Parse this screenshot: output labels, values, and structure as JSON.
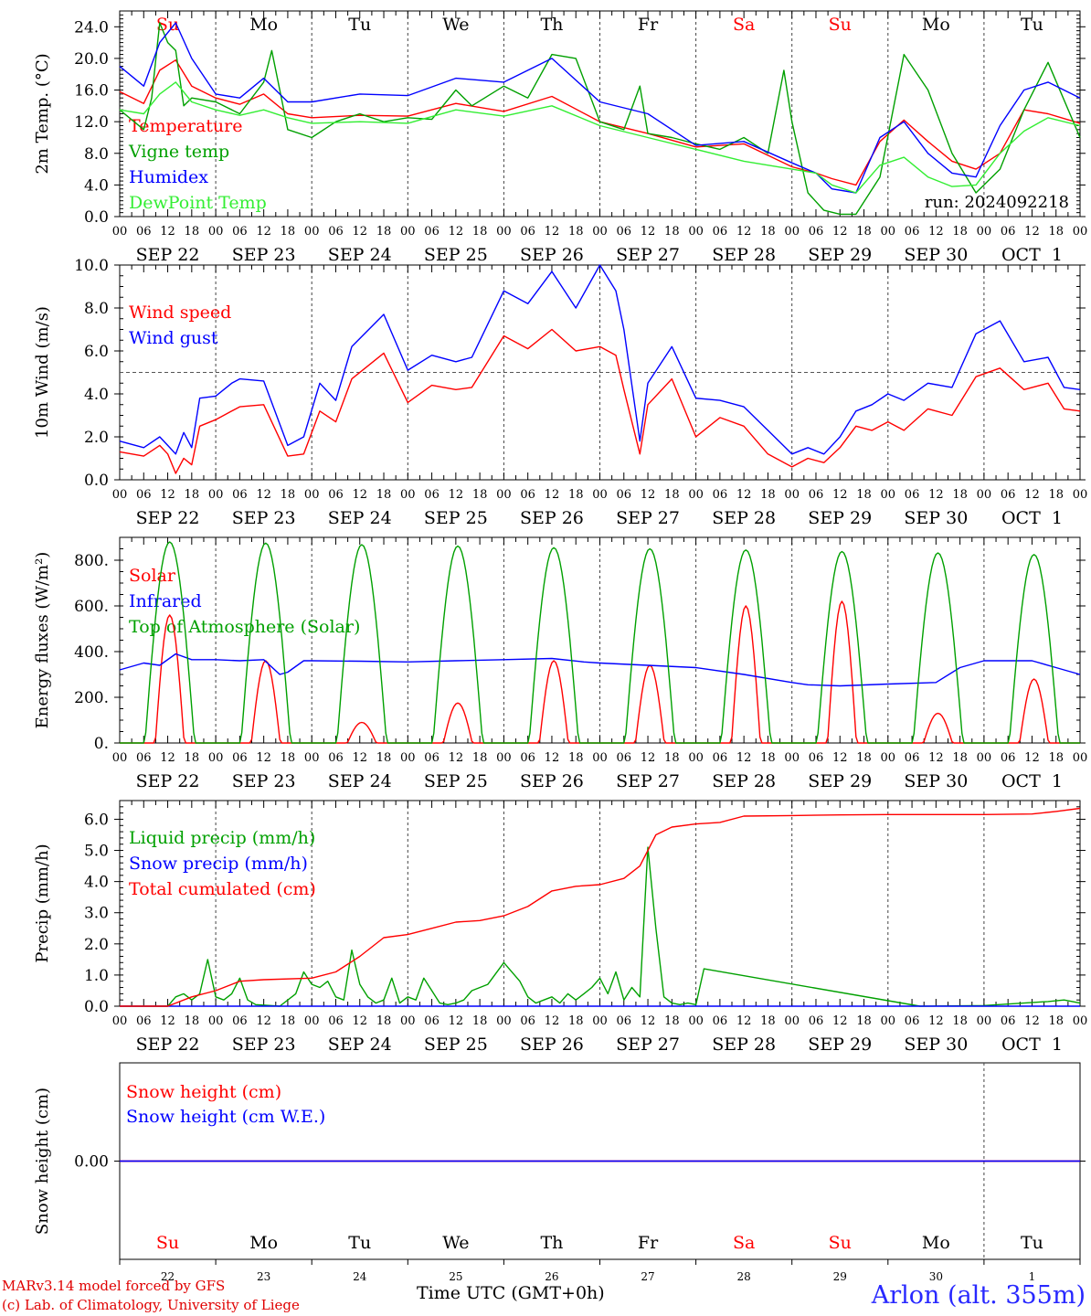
{
  "footer": {
    "credit_line1": "MARv3.14 model forced by GFS",
    "credit_line2": "(c) Lab. of Climatology, University of Liege",
    "x_axis_title": "Time UTC (GMT+0h)",
    "station": "Arlon (alt. 355m)"
  },
  "colors": {
    "red": "#ff0000",
    "green": "#00a000",
    "blue": "#0000ff",
    "lightgreen": "#33ee33",
    "purple": "#8000a0",
    "weekend": "#ff0000",
    "weekday": "#000000"
  },
  "chart_data": [
    {
      "type": "line",
      "ylabel": "2m Temp. (°C)",
      "ylim": [
        0,
        26
      ],
      "yticks": [
        "0.0",
        "4.0",
        "8.0",
        "12.0",
        "16.0",
        "20.0",
        "24.0"
      ],
      "annotation": "run: 2024092218",
      "day_names": [
        "Su",
        "Mo",
        "Tu",
        "We",
        "Th",
        "Fr",
        "Sa",
        "Su",
        "Mo",
        "Tu"
      ],
      "weekend_flags": [
        true,
        false,
        false,
        false,
        false,
        false,
        true,
        true,
        false,
        false
      ],
      "hour_ticks": [
        "00",
        "06",
        "12",
        "18"
      ],
      "date_labels": [
        "SEP 22",
        "SEP 23",
        "SEP 24",
        "SEP 25",
        "SEP 26",
        "SEP 27",
        "SEP 28",
        "SEP 29",
        "SEP 30",
        "OCT  1"
      ],
      "x_hours_range": [
        0,
        240
      ],
      "series": [
        {
          "name": "Temperature",
          "color": "#ff0000",
          "x": [
            0,
            6,
            10,
            14,
            18,
            24,
            30,
            36,
            42,
            48,
            60,
            72,
            84,
            96,
            108,
            120,
            132,
            144,
            156,
            168,
            174,
            178,
            184,
            190,
            196,
            202,
            208,
            214,
            220,
            226,
            232,
            240
          ],
          "values": [
            15.8,
            14.3,
            18.5,
            19.8,
            16.5,
            15,
            14.2,
            15.5,
            13,
            12.5,
            12.8,
            12.7,
            14.3,
            13.3,
            15.2,
            12,
            10.5,
            8.8,
            9.2,
            6.3,
            5.5,
            4.8,
            4,
            9.5,
            12.2,
            9.5,
            7,
            6,
            8,
            13.5,
            13,
            11.8
          ]
        },
        {
          "name": "Vigne temp",
          "color": "#00a000",
          "x": [
            0,
            6,
            8,
            10,
            12,
            14,
            16,
            18,
            24,
            30,
            36,
            38,
            40,
            42,
            48,
            54,
            60,
            66,
            72,
            78,
            84,
            88,
            96,
            102,
            108,
            114,
            120,
            126,
            130,
            132,
            138,
            144,
            150,
            156,
            162,
            166,
            168,
            172,
            176,
            180,
            184,
            190,
            196,
            202,
            208,
            214,
            220,
            226,
            232,
            240
          ],
          "values": [
            13.5,
            11,
            15,
            24.5,
            22,
            21,
            14,
            15,
            14.5,
            13,
            17,
            21,
            16,
            11,
            10,
            12,
            13,
            12,
            12.5,
            12.3,
            16,
            14,
            16.5,
            15,
            20.5,
            20,
            12,
            11,
            16.5,
            10.5,
            10,
            9.2,
            8.5,
            10,
            8,
            18.5,
            12,
            3,
            0.8,
            0.3,
            0.3,
            5,
            20.5,
            16,
            8,
            3,
            6,
            13.5,
            19.5,
            10
          ]
        },
        {
          "name": "Humidex",
          "color": "#0000ff",
          "x": [
            0,
            6,
            10,
            14,
            18,
            24,
            30,
            36,
            42,
            48,
            60,
            72,
            84,
            96,
            108,
            120,
            132,
            144,
            156,
            168,
            174,
            178,
            184,
            190,
            196,
            202,
            208,
            214,
            220,
            226,
            232,
            240
          ],
          "values": [
            19,
            16.5,
            22,
            24.5,
            20,
            15.5,
            15,
            17.5,
            14.5,
            14.5,
            15.5,
            15.3,
            17.5,
            17,
            20,
            14.5,
            13,
            9,
            9.5,
            6.8,
            5.5,
            3.5,
            3,
            10,
            12,
            8,
            5.5,
            5,
            11.5,
            16,
            17,
            15
          ]
        },
        {
          "name": "DewPoint Temp",
          "color": "#33ee33",
          "x": [
            0,
            6,
            10,
            14,
            18,
            24,
            30,
            36,
            42,
            48,
            60,
            72,
            84,
            96,
            108,
            120,
            132,
            144,
            156,
            168,
            174,
            178,
            184,
            190,
            196,
            202,
            208,
            214,
            220,
            226,
            232,
            240
          ],
          "values": [
            13.5,
            13,
            15.5,
            17,
            14.5,
            13.5,
            12.8,
            13.5,
            12.5,
            11.8,
            12,
            11.8,
            13.5,
            12.7,
            14,
            11.5,
            10,
            8.5,
            7,
            6,
            5.5,
            4,
            3,
            6.5,
            7.5,
            5,
            3.8,
            4,
            8,
            10.8,
            12.5,
            11.5
          ]
        }
      ]
    },
    {
      "type": "line",
      "ylabel": "10m Wind (m/s)",
      "ylim": [
        0,
        10
      ],
      "yticks": [
        "0.0",
        "2.0",
        "4.0",
        "6.0",
        "8.0",
        "10.0"
      ],
      "reference_line": 5,
      "hour_ticks": [
        "00",
        "06",
        "12",
        "18"
      ],
      "date_labels": [
        "SEP 22",
        "SEP 23",
        "SEP 24",
        "SEP 25",
        "SEP 26",
        "SEP 27",
        "SEP 28",
        "SEP 29",
        "SEP 30",
        "OCT  1"
      ],
      "x_hours_range": [
        0,
        240
      ],
      "series": [
        {
          "name": "Wind speed",
          "color": "#ff0000",
          "x": [
            0,
            6,
            10,
            12,
            14,
            16,
            18,
            20,
            24,
            28,
            30,
            36,
            42,
            46,
            50,
            54,
            58,
            66,
            72,
            78,
            84,
            88,
            96,
            102,
            108,
            114,
            120,
            124,
            126,
            130,
            132,
            138,
            144,
            150,
            156,
            162,
            168,
            172,
            176,
            180,
            184,
            188,
            192,
            196,
            202,
            208,
            214,
            220,
            226,
            232,
            236,
            240
          ],
          "values": [
            1.3,
            1.1,
            1.6,
            1.2,
            0.3,
            1,
            0.7,
            2.5,
            2.8,
            3.2,
            3.4,
            3.5,
            1.1,
            1.2,
            3.2,
            2.7,
            4.7,
            5.9,
            3.6,
            4.4,
            4.2,
            4.3,
            6.7,
            6.1,
            7,
            6,
            6.2,
            5.8,
            4.2,
            1.2,
            3.5,
            4.7,
            2,
            2.9,
            2.5,
            1.2,
            0.6,
            1,
            0.8,
            1.5,
            2.5,
            2.3,
            2.7,
            2.3,
            3.3,
            3,
            4.8,
            5.2,
            4.2,
            4.5,
            3.3,
            3.2
          ]
        },
        {
          "name": "Wind gust",
          "color": "#0000ff",
          "x": [
            0,
            6,
            10,
            12,
            14,
            16,
            18,
            20,
            24,
            28,
            30,
            36,
            42,
            46,
            50,
            54,
            58,
            66,
            72,
            78,
            84,
            88,
            96,
            102,
            108,
            114,
            120,
            124,
            126,
            130,
            132,
            138,
            144,
            150,
            156,
            162,
            168,
            172,
            176,
            180,
            184,
            188,
            192,
            196,
            202,
            208,
            214,
            220,
            226,
            232,
            236,
            240
          ],
          "values": [
            1.8,
            1.5,
            2,
            1.6,
            1.2,
            2.2,
            1.5,
            3.8,
            3.9,
            4.5,
            4.7,
            4.6,
            1.6,
            2,
            4.5,
            3.7,
            6.2,
            7.7,
            5.1,
            5.8,
            5.5,
            5.7,
            8.8,
            8.2,
            9.7,
            8,
            10,
            8.8,
            7,
            1.8,
            4.5,
            6.2,
            3.8,
            3.7,
            3.4,
            2.3,
            1.2,
            1.5,
            1.2,
            2,
            3.2,
            3.5,
            4,
            3.7,
            4.5,
            4.3,
            6.8,
            7.4,
            5.5,
            5.7,
            4.3,
            4.2
          ]
        }
      ]
    },
    {
      "type": "line",
      "ylabel": "Energy fluxes (W/m²)",
      "ylim": [
        0,
        900
      ],
      "yticks": [
        "0.",
        "200.",
        "400.",
        "600.",
        "800."
      ],
      "hour_ticks": [
        "00",
        "06",
        "12",
        "18"
      ],
      "date_labels": [
        "SEP 22",
        "SEP 23",
        "SEP 24",
        "SEP 25",
        "SEP 26",
        "SEP 27",
        "SEP 28",
        "SEP 29",
        "SEP 30",
        "OCT  1"
      ],
      "x_hours_range": [
        0,
        240
      ],
      "series": [
        {
          "name": "Solar",
          "color": "#ff0000",
          "daily_peaks": [
            560,
            360,
            90,
            175,
            360,
            340,
            600,
            620,
            130,
            280
          ]
        },
        {
          "name": "Infrared",
          "color": "#0000ff",
          "x": [
            0,
            6,
            10,
            14,
            18,
            24,
            30,
            36,
            40,
            42,
            46,
            48,
            60,
            72,
            84,
            96,
            108,
            116,
            120,
            132,
            144,
            156,
            168,
            172,
            180,
            192,
            204,
            210,
            216,
            228,
            234,
            240
          ],
          "values": [
            320,
            350,
            340,
            390,
            365,
            365,
            360,
            365,
            300,
            310,
            360,
            360,
            358,
            355,
            360,
            365,
            370,
            355,
            350,
            340,
            330,
            300,
            265,
            255,
            250,
            258,
            265,
            330,
            360,
            360,
            330,
            300
          ]
        },
        {
          "name": "Top of Atmosphere (Solar)",
          "color": "#00a000",
          "daily_peaks": [
            880,
            875,
            868,
            862,
            855,
            850,
            845,
            838,
            832,
            825
          ]
        }
      ]
    },
    {
      "type": "line",
      "ylabel": "Precip (mm/h)",
      "ylim": [
        0,
        6.6
      ],
      "yticks": [
        "0.0",
        "1.0",
        "2.0",
        "3.0",
        "4.0",
        "5.0",
        "6.0"
      ],
      "hour_ticks": [
        "00",
        "06",
        "12",
        "18"
      ],
      "date_labels": [
        "SEP 22",
        "SEP 23",
        "SEP 24",
        "SEP 25",
        "SEP 26",
        "SEP 27",
        "SEP 28",
        "SEP 29",
        "SEP 30",
        "OCT  1"
      ],
      "x_hours_range": [
        0,
        240
      ],
      "series": [
        {
          "name": "Liquid precip (mm/h)",
          "color": "#00a000",
          "x": [
            0,
            12,
            14,
            16,
            18,
            20,
            22,
            24,
            26,
            28,
            30,
            32,
            34,
            40,
            44,
            46,
            48,
            50,
            52,
            54,
            56,
            58,
            60,
            62,
            64,
            66,
            68,
            70,
            72,
            74,
            76,
            78,
            80,
            82,
            84,
            86,
            88,
            92,
            96,
            100,
            102,
            104,
            106,
            108,
            110,
            112,
            114,
            116,
            118,
            120,
            122,
            124,
            126,
            128,
            130,
            132,
            134,
            136,
            138,
            140,
            142,
            144,
            146,
            200,
            216,
            232,
            236,
            240
          ],
          "values": [
            0,
            0,
            0.3,
            0.4,
            0.2,
            0.4,
            1.5,
            0.3,
            0.2,
            0.4,
            0.9,
            0.2,
            0.05,
            0,
            0.4,
            1.1,
            0.7,
            0.6,
            0.8,
            0.3,
            0.2,
            1.8,
            0.7,
            0.3,
            0.1,
            0.2,
            0.9,
            0.1,
            0.3,
            0.2,
            0.9,
            0.5,
            0.1,
            0.05,
            0.1,
            0.2,
            0.5,
            0.7,
            1.4,
            0.8,
            0.3,
            0.1,
            0.2,
            0.3,
            0.1,
            0.4,
            0.2,
            0.4,
            0.6,
            0.9,
            0.4,
            1.1,
            0.2,
            0.6,
            0.3,
            5.1,
            2.5,
            0.3,
            0.1,
            0.05,
            0.1,
            0.05,
            1.2,
            0,
            0.02,
            0.15,
            0.2,
            0.1
          ]
        },
        {
          "name": "Snow precip (mm/h)",
          "color": "#0000ff",
          "x": [
            0,
            240
          ],
          "values": [
            0,
            0
          ]
        },
        {
          "name": "Total cumulated (cm)",
          "color": "#ff0000",
          "x": [
            0,
            12,
            18,
            24,
            30,
            36,
            48,
            54,
            60,
            66,
            72,
            78,
            84,
            90,
            96,
            102,
            108,
            114,
            120,
            126,
            130,
            134,
            138,
            144,
            150,
            156,
            168,
            180,
            192,
            204,
            216,
            228,
            234,
            240
          ],
          "values": [
            0,
            0,
            0.3,
            0.5,
            0.8,
            0.85,
            0.9,
            1.1,
            1.6,
            2.2,
            2.3,
            2.5,
            2.7,
            2.75,
            2.9,
            3.2,
            3.7,
            3.85,
            3.9,
            4.1,
            4.5,
            5.5,
            5.75,
            5.85,
            5.9,
            6.1,
            6.12,
            6.14,
            6.15,
            6.15,
            6.15,
            6.17,
            6.25,
            6.35
          ]
        }
      ]
    },
    {
      "type": "line",
      "ylabel": "Snow height (cm)",
      "ylim": [
        -1,
        1
      ],
      "yticks": [
        "0.00"
      ],
      "day_names": [
        "Su",
        "Mo",
        "Tu",
        "We",
        "Th",
        "Fr",
        "Sa",
        "Su",
        "Mo",
        "Tu"
      ],
      "weekend_flags": [
        true,
        false,
        false,
        false,
        false,
        false,
        true,
        true,
        false,
        false
      ],
      "day_numbers": [
        "22",
        "23",
        "24",
        "25",
        "26",
        "27",
        "28",
        "29",
        "30",
        "1"
      ],
      "x_hours_range": [
        0,
        240
      ],
      "series": [
        {
          "name": "Snow height (cm)",
          "color": "#ff0000",
          "x": [
            0,
            240
          ],
          "values": [
            0,
            0
          ]
        },
        {
          "name": "Snow height (cm W.E.)",
          "color": "#0000ff",
          "x": [
            0,
            240
          ],
          "values": [
            0,
            0
          ]
        }
      ]
    }
  ]
}
